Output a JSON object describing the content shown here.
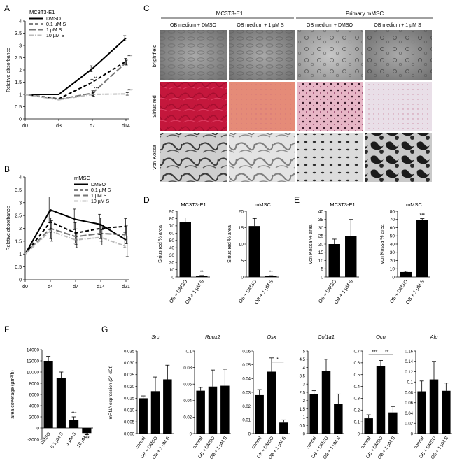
{
  "panel_letters": {
    "A": "A",
    "B": "B",
    "C": "C",
    "D": "D",
    "E": "E",
    "F": "F",
    "G": "G"
  },
  "common": {
    "ylabel_abs": "Relative absorbance",
    "treatment_labels": [
      "OB + DMSO",
      "OB + 1 µM S"
    ],
    "control_label": "control"
  },
  "panel_c": {
    "group_titles": [
      "MC3T3-E1",
      "Primary mMSC"
    ],
    "column_titles": [
      "OB medium + DMSO",
      "OB medium + 1 µM S",
      "OB medium + DMSO",
      "OB medium + 1 µM S"
    ],
    "row_labels": [
      "brightfield",
      "Sirius red",
      "Von Kossa"
    ]
  },
  "colors": {
    "sirius_dark": "#c4173c",
    "sirius_light": "#e58b78",
    "vonkossa_dark": "#2b2b2b",
    "brightfield": "#8a8a8a"
  },
  "chart_data": [
    {
      "id": "A",
      "type": "line",
      "legend_title": "MC3T3-E1",
      "legend_position": "top-left",
      "categories": [
        "d0",
        "d3",
        "d7",
        "d14"
      ],
      "ylim": [
        0,
        4
      ],
      "yticks": [
        0,
        0.5,
        1,
        1.5,
        2,
        2.5,
        3,
        3.5,
        4
      ],
      "ylabel": "Relative absorbance",
      "series": [
        {
          "name": "DMSO",
          "values": [
            1,
            1,
            2.05,
            3.3
          ],
          "errors": [
            0,
            0,
            0.12,
            0.1
          ],
          "style": "solid",
          "color": "#000000"
        },
        {
          "name": "0.1 µM S",
          "values": [
            1,
            0.82,
            1.5,
            2.35
          ],
          "errors": [
            0,
            0,
            0.12,
            0.12
          ],
          "style": "dash",
          "color": "#000000"
        },
        {
          "name": "1 µM S",
          "values": [
            1,
            0.8,
            1.05,
            2.3
          ],
          "errors": [
            0,
            0,
            0.1,
            0.1
          ],
          "style": "longdash",
          "color": "#777777"
        },
        {
          "name": "10 µM S",
          "values": [
            1,
            0.78,
            1.0,
            1.02
          ],
          "errors": [
            0,
            0,
            0.08,
            0.05
          ],
          "style": "dashdot",
          "color": "#bbbbbb"
        }
      ],
      "annotations": [
        {
          "x": "d7",
          "y": 1.6,
          "text": "**"
        },
        {
          "x": "d7",
          "y": 1.18,
          "text": "***"
        },
        {
          "x": "d14",
          "y": 2.5,
          "text": "***"
        },
        {
          "x": "d14",
          "y": 1.1,
          "text": "***"
        }
      ]
    },
    {
      "id": "B",
      "type": "line",
      "legend_title": "mMSC",
      "legend_position": "top-right",
      "categories": [
        "d0",
        "d4",
        "d7",
        "d14",
        "d21"
      ],
      "ylim": [
        0,
        4
      ],
      "yticks": [
        0,
        0.5,
        1,
        1.5,
        2,
        2.5,
        3,
        3.5,
        4
      ],
      "ylabel": "Relative absorbance",
      "series": [
        {
          "name": "DMSO",
          "values": [
            1,
            2.72,
            2.35,
            2.15,
            1.55
          ],
          "errors": [
            0,
            0.5,
            0.4,
            0.4,
            0.3
          ],
          "style": "solid",
          "color": "#000000"
        },
        {
          "name": "0.1 µM S",
          "values": [
            1,
            2.25,
            1.82,
            2.0,
            2.08
          ],
          "errors": [
            0,
            0.4,
            0.4,
            0.4,
            0.3
          ],
          "style": "dash",
          "color": "#000000"
        },
        {
          "name": "1 µM S",
          "values": [
            1,
            2.0,
            1.68,
            1.8,
            1.75
          ],
          "errors": [
            0,
            0.4,
            0.3,
            0.3,
            0.35
          ],
          "style": "longdash",
          "color": "#777777"
        },
        {
          "name": "10 µM S",
          "values": [
            1,
            1.9,
            1.55,
            1.65,
            1.3
          ],
          "errors": [
            0,
            0.4,
            0.3,
            0.3,
            0.4
          ],
          "style": "dashdot",
          "color": "#bbbbbb"
        }
      ]
    },
    {
      "id": "D1",
      "type": "bar",
      "title": "MC3T3-E1",
      "ylabel": "Sirius red % area",
      "categories": [
        "OB + DMSO",
        "OB + 1 µM S"
      ],
      "values": [
        75,
        1.5
      ],
      "errors": [
        6,
        0.5
      ],
      "ylim": [
        0,
        90
      ],
      "yticks": [
        0,
        10,
        20,
        30,
        40,
        50,
        60,
        70,
        80,
        90
      ],
      "annotations": [
        "",
        "**"
      ]
    },
    {
      "id": "D2",
      "type": "bar",
      "title": "mMSC",
      "ylabel": "Sirius red % area",
      "categories": [
        "OB + DMSO",
        "OB + 1 µM S"
      ],
      "values": [
        15.5,
        0.3
      ],
      "errors": [
        2.3,
        0.1
      ],
      "ylim": [
        0,
        20
      ],
      "yticks": [
        0,
        5,
        10,
        15,
        20
      ],
      "annotations": [
        "",
        "**"
      ]
    },
    {
      "id": "E1",
      "type": "bar",
      "title": "MC3T3-E1",
      "ylabel": "von Kossa % area",
      "categories": [
        "OB + DMSO",
        "OB + 1 µM S"
      ],
      "values": [
        20,
        25
      ],
      "errors": [
        3,
        10
      ],
      "ylim": [
        0,
        40
      ],
      "yticks": [
        0,
        5,
        10,
        15,
        20,
        25,
        30,
        35,
        40
      ],
      "annotations": [
        "",
        ""
      ]
    },
    {
      "id": "E2",
      "type": "bar",
      "title": "mMSC",
      "ylabel": "von Kossa % area",
      "categories": [
        "OB + DMSO",
        "OB + 1 µM S"
      ],
      "values": [
        6,
        69
      ],
      "errors": [
        1,
        2
      ],
      "ylim": [
        0,
        80
      ],
      "yticks": [
        0,
        10,
        20,
        30,
        40,
        50,
        60,
        70,
        80
      ],
      "annotations": [
        "",
        "***"
      ]
    },
    {
      "id": "F",
      "type": "bar",
      "ylabel": "area coverage (µm²/h)",
      "categories": [
        "DMSO",
        "0.1 µM S",
        "1 µM S",
        "10 µM S"
      ],
      "values": [
        12000,
        9000,
        1500,
        -900
      ],
      "errors": [
        800,
        1000,
        500,
        300
      ],
      "ylim": [
        -2000,
        14000
      ],
      "yticks": [
        -2000,
        0,
        2000,
        4000,
        6000,
        8000,
        10000,
        12000,
        14000
      ],
      "annotations": [
        "",
        "",
        "***",
        "***"
      ]
    },
    {
      "id": "G1",
      "type": "bar",
      "title": "Src",
      "ylabel": "mRNA expression (2^-dCt)",
      "categories": [
        "control",
        "OB + DMSO",
        "OB + 1 µM S"
      ],
      "values": [
        0.015,
        0.018,
        0.023
      ],
      "errors": [
        0.001,
        0.006,
        0.006
      ],
      "ylim": [
        0,
        0.035
      ],
      "yticks": [
        0,
        0.005,
        0.01,
        0.015,
        0.02,
        0.025,
        0.03,
        0.035
      ],
      "ytick_labels": [
        "0.000",
        "0.005",
        "0.010",
        "0.015",
        "0.020",
        "0.025",
        "0.030",
        "0.035"
      ]
    },
    {
      "id": "G2",
      "type": "bar",
      "title": "Runx2",
      "categories": [
        "control",
        "OB + DMSO",
        "OB + 1 µM S"
      ],
      "values": [
        0.052,
        0.057,
        0.058
      ],
      "errors": [
        0.004,
        0.02,
        0.02
      ],
      "ylim": [
        0,
        0.1
      ],
      "yticks": [
        0,
        0.02,
        0.04,
        0.06,
        0.08,
        0.1
      ]
    },
    {
      "id": "G3",
      "type": "bar",
      "title": "Osx",
      "categories": [
        "control",
        "OB + DMSO",
        "OB + 1 µM S"
      ],
      "values": [
        0.028,
        0.045,
        0.008
      ],
      "errors": [
        0.004,
        0.01,
        0.002
      ],
      "ylim": [
        0,
        0.06
      ],
      "yticks": [
        0,
        0.01,
        0.02,
        0.03,
        0.04,
        0.05,
        0.06
      ],
      "brackets": [
        {
          "from": 1,
          "to": 2,
          "y": 0.052,
          "text": "*"
        }
      ]
    },
    {
      "id": "G4",
      "type": "bar",
      "title": "Col1a1",
      "categories": [
        "control",
        "OB + DMSO",
        "OB + 1 µM S"
      ],
      "values": [
        2.4,
        3.8,
        1.8
      ],
      "errors": [
        0.2,
        0.7,
        0.6
      ],
      "ylim": [
        0,
        5
      ],
      "yticks": [
        0,
        0.5,
        1,
        1.5,
        2,
        2.5,
        3,
        3.5,
        4,
        4.5,
        5
      ]
    },
    {
      "id": "G5",
      "type": "bar",
      "title": "Ocn",
      "categories": [
        "control",
        "OB + DMSO",
        "OB + 1 µM S"
      ],
      "values": [
        0.13,
        0.57,
        0.18
      ],
      "errors": [
        0.03,
        0.05,
        0.05
      ],
      "ylim": [
        0,
        0.7
      ],
      "yticks": [
        0,
        0.1,
        0.2,
        0.3,
        0.4,
        0.5,
        0.6,
        0.7
      ],
      "brackets": [
        {
          "from": 0,
          "to": 1,
          "y": 0.67,
          "text": "***"
        },
        {
          "from": 1,
          "to": 2,
          "y": 0.67,
          "text": "**"
        }
      ]
    },
    {
      "id": "G6",
      "type": "bar",
      "title": "Alp",
      "categories": [
        "control",
        "OB + DMSO",
        "OB + 1 µM S"
      ],
      "values": [
        0.082,
        0.105,
        0.083
      ],
      "errors": [
        0.02,
        0.035,
        0.015
      ],
      "ylim": [
        0,
        0.16
      ],
      "yticks": [
        0,
        0.02,
        0.04,
        0.06,
        0.08,
        0.1,
        0.12,
        0.14,
        0.16
      ]
    }
  ]
}
